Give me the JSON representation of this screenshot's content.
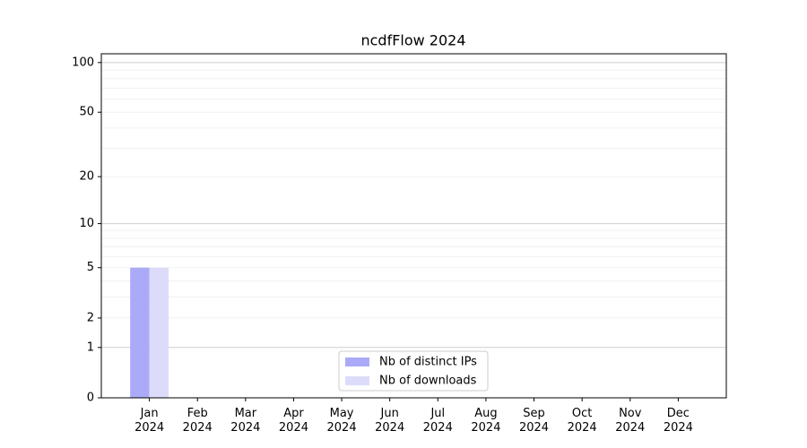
{
  "chart_data": {
    "type": "bar",
    "title": "ncdfFlow 2024",
    "categories": [
      "Jan 2024",
      "Feb 2024",
      "Mar 2024",
      "Apr 2024",
      "May 2024",
      "Jun 2024",
      "Jul 2024",
      "Aug 2024",
      "Sep 2024",
      "Oct 2024",
      "Nov 2024",
      "Dec 2024"
    ],
    "series": [
      {
        "name": "Nb of distinct IPs",
        "color": "#aaaaf8",
        "values": [
          5,
          0,
          0,
          0,
          0,
          0,
          0,
          0,
          0,
          0,
          0,
          0
        ]
      },
      {
        "name": "Nb of downloads",
        "color": "#dcdcfa",
        "values": [
          5,
          0,
          0,
          0,
          0,
          0,
          0,
          0,
          0,
          0,
          0,
          0
        ]
      }
    ],
    "y_scale": "log1p",
    "ylim": [
      0,
      113
    ],
    "yticks": [
      0,
      1,
      2,
      5,
      10,
      20,
      50,
      100
    ],
    "major_grid": [
      1,
      10,
      100
    ],
    "minor_grid": [
      2,
      3,
      4,
      5,
      6,
      7,
      8,
      9,
      20,
      30,
      40,
      50,
      60,
      70,
      80,
      90
    ],
    "legend": "lower center"
  }
}
